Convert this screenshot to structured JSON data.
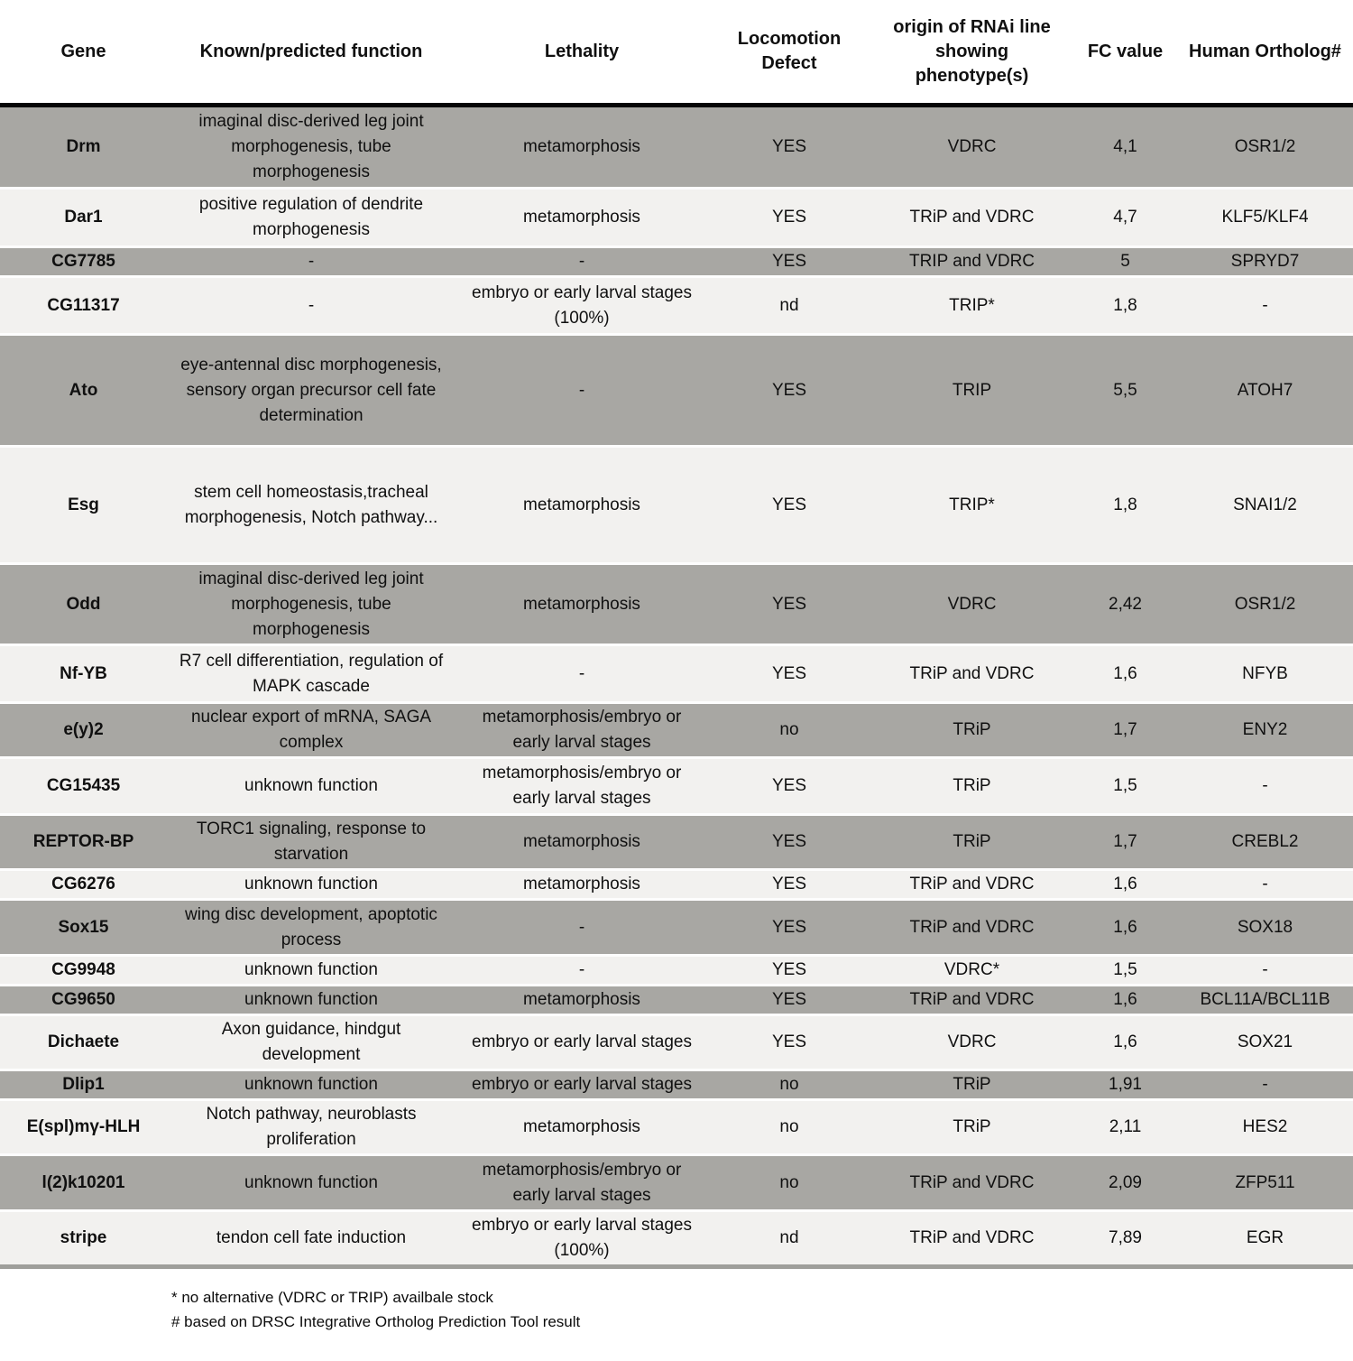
{
  "table": {
    "columns": {
      "gene": "Gene",
      "function": "Known/predicted function",
      "lethality": "Lethality",
      "locomotion": "Locomotion Defect",
      "origin": "origin of RNAi line showing phenotype(s)",
      "fc": "FC value",
      "ortholog": "Human Ortholog#"
    },
    "rows": [
      {
        "gene": "Drm",
        "function": "imaginal disc-derived leg joint morphogenesis, tube morphogenesis",
        "lethality": "metamorphosis",
        "locomotion": "YES",
        "origin": "VDRC",
        "fc": "4,1",
        "ortholog": "OSR1/2"
      },
      {
        "gene": "Dar1",
        "function": "positive regulation of dendrite morphogenesis",
        "lethality": "metamorphosis",
        "locomotion": "YES",
        "origin": "TRiP and VDRC",
        "fc": "4,7",
        "ortholog": "KLF5/KLF4"
      },
      {
        "gene": "CG7785",
        "function": "-",
        "lethality": "-",
        "locomotion": "YES",
        "origin": "TRIP and VDRC",
        "fc": "5",
        "ortholog": "SPRYD7"
      },
      {
        "gene": "CG11317",
        "function": "-",
        "lethality": "embryo or early larval stages (100%)",
        "locomotion": "nd",
        "origin": "TRIP*",
        "fc": "1,8",
        "ortholog": "-"
      },
      {
        "gene": "Ato",
        "function": "eye-antennal disc morphogenesis, sensory organ precursor cell fate determination",
        "lethality": "-",
        "locomotion": "YES",
        "origin": "TRIP",
        "fc": "5,5",
        "ortholog": "ATOH7"
      },
      {
        "gene": "Esg",
        "function": "stem cell homeostasis,tracheal morphogenesis, Notch pathway...",
        "lethality": "metamorphosis",
        "locomotion": "YES",
        "origin": "TRIP*",
        "fc": "1,8",
        "ortholog": "SNAI1/2"
      },
      {
        "gene": "Odd",
        "function": "imaginal disc-derived leg joint morphogenesis, tube morphogenesis",
        "lethality": "metamorphosis",
        "locomotion": "YES",
        "origin": "VDRC",
        "fc": "2,42",
        "ortholog": "OSR1/2"
      },
      {
        "gene": "Nf-YB",
        "function": "R7 cell differentiation, regulation of MAPK cascade",
        "lethality": "-",
        "locomotion": "YES",
        "origin": "TRiP and VDRC",
        "fc": "1,6",
        "ortholog": "NFYB"
      },
      {
        "gene": "e(y)2",
        "function": "nuclear export of mRNA, SAGA complex",
        "lethality": "metamorphosis/embryo or early larval stages",
        "locomotion": "no",
        "origin": "TRiP",
        "fc": "1,7",
        "ortholog": "ENY2"
      },
      {
        "gene": "CG15435",
        "function": "unknown function",
        "lethality": "metamorphosis/embryo or early larval stages",
        "locomotion": "YES",
        "origin": "TRiP",
        "fc": "1,5",
        "ortholog": "-"
      },
      {
        "gene": "REPTOR-BP",
        "function": "TORC1 signaling, response to starvation",
        "lethality": "metamorphosis",
        "locomotion": "YES",
        "origin": "TRiP",
        "fc": "1,7",
        "ortholog": "CREBL2"
      },
      {
        "gene": "CG6276",
        "function": "unknown function",
        "lethality": "metamorphosis",
        "locomotion": "YES",
        "origin": "TRiP and VDRC",
        "fc": "1,6",
        "ortholog": "-"
      },
      {
        "gene": "Sox15",
        "function": "wing disc development, apoptotic process",
        "lethality": "-",
        "locomotion": "YES",
        "origin": "TRiP and VDRC",
        "fc": "1,6",
        "ortholog": "SOX18"
      },
      {
        "gene": "CG9948",
        "function": "unknown function",
        "lethality": "-",
        "locomotion": "YES",
        "origin": "VDRC*",
        "fc": "1,5",
        "ortholog": "-"
      },
      {
        "gene": "CG9650",
        "function": "unknown function",
        "lethality": "metamorphosis",
        "locomotion": "YES",
        "origin": "TRiP and VDRC",
        "fc": "1,6",
        "ortholog": "BCL11A/BCL11B"
      },
      {
        "gene": "Dichaete",
        "function": "Axon guidance, hindgut development",
        "lethality": "embryo or early larval stages",
        "locomotion": "YES",
        "origin": "VDRC",
        "fc": "1,6",
        "ortholog": "SOX21"
      },
      {
        "gene": "Dlip1",
        "function": "unknown function",
        "lethality": "embryo or early larval stages",
        "locomotion": "no",
        "origin": "TRiP",
        "fc": "1,91",
        "ortholog": "-"
      },
      {
        "gene": "E(spl)mγ-HLH",
        "function": "Notch pathway, neuroblasts proliferation",
        "lethality": "metamorphosis",
        "locomotion": "no",
        "origin": "TRiP",
        "fc": "2,11",
        "ortholog": "HES2"
      },
      {
        "gene": "l(2)k10201",
        "function": "unknown function",
        "lethality": "metamorphosis/embryo or early larval stages",
        "locomotion": "no",
        "origin": "TRiP and VDRC",
        "fc": "2,09",
        "ortholog": "ZFP511"
      },
      {
        "gene": "stripe",
        "function": "tendon cell fate induction",
        "lethality": "embryo or early larval stages (100%)",
        "locomotion": "nd",
        "origin": "TRiP and VDRC",
        "fc": "7,89",
        "ortholog": "EGR"
      }
    ]
  },
  "footnotes": {
    "asterisk": "* no alternative (VDRC or TRIP) availbale stock",
    "hash": "# based on DRSC Integrative Ortholog Prediction Tool result"
  },
  "colors": {
    "row_shaded": "#a8a7a3",
    "row_light": "#f2f1ef",
    "header_rule": "#060606",
    "bottom_rule": "#9f9f9b"
  }
}
